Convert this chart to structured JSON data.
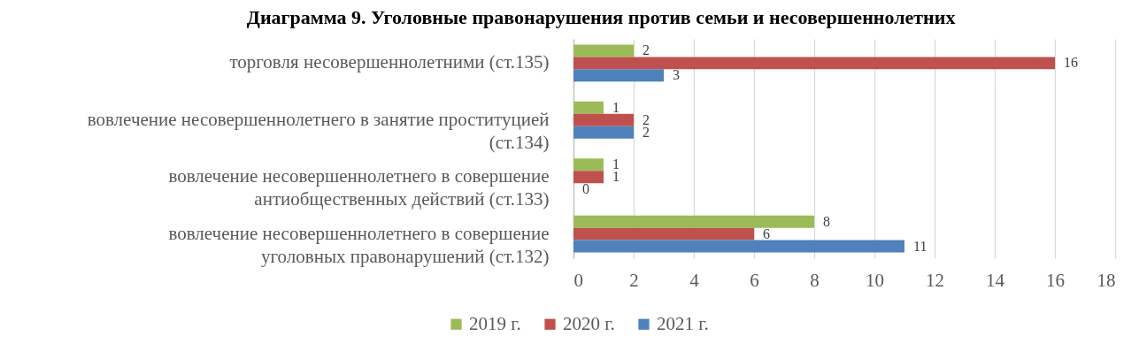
{
  "chart_data": {
    "type": "bar",
    "orientation": "horizontal",
    "title": "Диаграмма 9. Уголовные правонарушения против семьи и несовершеннолетних",
    "categories": [
      "торговля несовершеннолетними (ст.135)",
      "вовлечение несовершеннолетнего в занятие проституцией (ст.134)",
      "вовлечение несовершеннолетнего в совершение антиобщественных действий (ст.133)",
      "вовлечение несовершеннолетнего в совершение уголовных правонарушений (ст.132)"
    ],
    "series": [
      {
        "name": "2019 г.",
        "color": "#9bbb59",
        "values": [
          2,
          1,
          1,
          8
        ]
      },
      {
        "name": "2020 г.",
        "color": "#c0504d",
        "values": [
          16,
          2,
          1,
          6
        ]
      },
      {
        "name": "2021 г.",
        "color": "#4f81bd",
        "values": [
          3,
          2,
          0,
          11
        ]
      }
    ],
    "xlim": [
      0,
      18
    ],
    "xticks": [
      0,
      2,
      4,
      6,
      8,
      10,
      12,
      14,
      16,
      18
    ],
    "grid": "x",
    "legend": "bottom",
    "data_labels": true
  }
}
